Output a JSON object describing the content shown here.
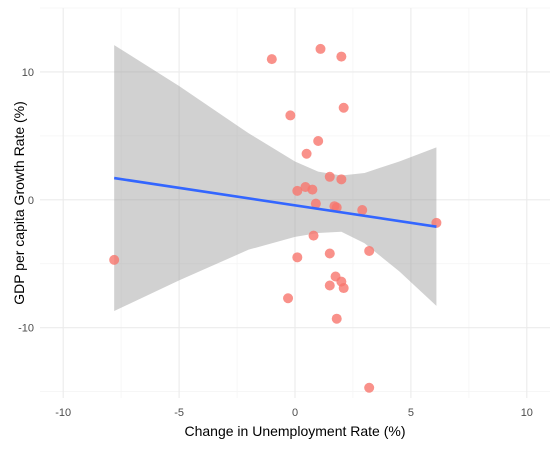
{
  "chart_data": {
    "type": "scatter",
    "xlabel": "Change in Unemployment Rate (%)",
    "ylabel": "GDP per capita Growth Rate (%)",
    "xlim": [
      -11,
      11
    ],
    "ylim": [
      -15.5,
      15
    ],
    "x_ticks": [
      -10,
      -5,
      0,
      5,
      10
    ],
    "y_ticks": [
      -10,
      0,
      10
    ],
    "grid": true,
    "colors": {
      "points": "#f8766d",
      "line": "#3366ff",
      "band": "#999999"
    },
    "points": [
      {
        "x": -7.8,
        "y": -4.7
      },
      {
        "x": -1.0,
        "y": 11.0
      },
      {
        "x": 1.1,
        "y": 11.8
      },
      {
        "x": 2.0,
        "y": 11.2
      },
      {
        "x": 2.1,
        "y": 7.2
      },
      {
        "x": -0.2,
        "y": 6.6
      },
      {
        "x": 1.0,
        "y": 4.6
      },
      {
        "x": 0.5,
        "y": 3.6
      },
      {
        "x": 1.5,
        "y": 1.8
      },
      {
        "x": 2.0,
        "y": 1.6
      },
      {
        "x": 0.1,
        "y": 0.7
      },
      {
        "x": 0.45,
        "y": 1.0
      },
      {
        "x": 0.75,
        "y": 0.8
      },
      {
        "x": 0.9,
        "y": -0.3
      },
      {
        "x": 1.7,
        "y": -0.5
      },
      {
        "x": 1.8,
        "y": -0.6
      },
      {
        "x": 2.9,
        "y": -0.8
      },
      {
        "x": 0.8,
        "y": -2.8
      },
      {
        "x": 3.2,
        "y": -4.0
      },
      {
        "x": 0.1,
        "y": -4.5
      },
      {
        "x": 1.5,
        "y": -4.2
      },
      {
        "x": 1.75,
        "y": -6.0
      },
      {
        "x": 2.0,
        "y": -6.4
      },
      {
        "x": 1.5,
        "y": -6.7
      },
      {
        "x": 2.1,
        "y": -6.9
      },
      {
        "x": -0.3,
        "y": -7.7
      },
      {
        "x": 1.8,
        "y": -9.3
      },
      {
        "x": 3.2,
        "y": -14.7
      },
      {
        "x": 6.1,
        "y": -1.8
      }
    ],
    "fit": {
      "x": [
        -7.8,
        6.1
      ],
      "y": [
        1.7,
        -2.1
      ]
    },
    "confidence_band": {
      "x": [
        -7.8,
        -5.0,
        -2.0,
        0.0,
        1.0,
        2.0,
        3.0,
        4.5,
        6.1
      ],
      "upper": [
        12.1,
        8.9,
        5.2,
        3.0,
        2.2,
        1.9,
        2.1,
        3.0,
        4.1
      ],
      "lower": [
        -8.7,
        -6.3,
        -3.9,
        -2.9,
        -2.6,
        -2.5,
        -3.4,
        -5.6,
        -8.3
      ]
    }
  }
}
